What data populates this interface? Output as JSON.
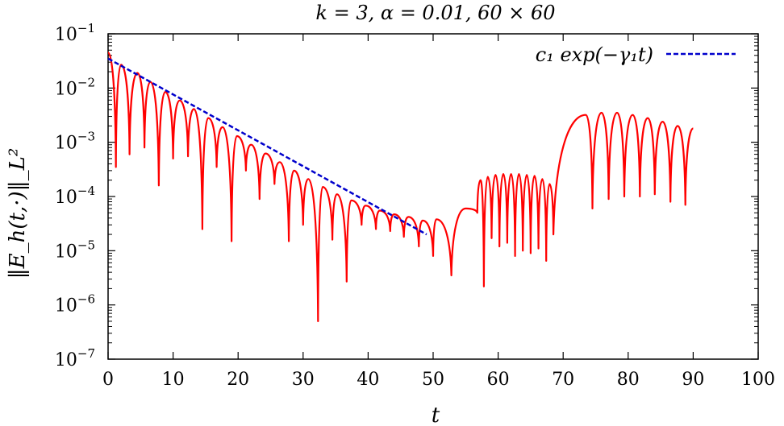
{
  "chart_data": {
    "type": "line",
    "title": "k = 3, α = 0.01, 60 × 60",
    "xlabel": "t",
    "ylabel": "‖E_h(t,·)‖_L²",
    "xlim": [
      0,
      100
    ],
    "ylim": [
      1e-07,
      0.1
    ],
    "yscale": "log",
    "grid": false,
    "legend_position": "top-right",
    "x_ticks": [
      0,
      10,
      20,
      30,
      40,
      50,
      60,
      70,
      80,
      90,
      100
    ],
    "y_ticks": [
      {
        "value": 1e-07,
        "base": "10",
        "exp": "−7"
      },
      {
        "value": 1e-06,
        "base": "10",
        "exp": "−6"
      },
      {
        "value": 1e-05,
        "base": "10",
        "exp": "−5"
      },
      {
        "value": 0.0001,
        "base": "10",
        "exp": "−4"
      },
      {
        "value": 0.001,
        "base": "10",
        "exp": "−3"
      },
      {
        "value": 0.01,
        "base": "10",
        "exp": "−2"
      },
      {
        "value": 0.1,
        "base": "10",
        "exp": "−1"
      }
    ],
    "series": [
      {
        "color": "#ff0000",
        "style": "solid",
        "peaks": [
          [
            0,
            0.045
          ],
          [
            2.0,
            0.027
          ],
          [
            4.5,
            0.019
          ],
          [
            6.5,
            0.013
          ],
          [
            8.8,
            0.0085
          ],
          [
            11.0,
            0.0059
          ],
          [
            13.2,
            0.0041
          ],
          [
            15.4,
            0.0028
          ],
          [
            17.6,
            0.0019
          ],
          [
            19.8,
            0.0013
          ],
          [
            22.0,
            0.0009
          ],
          [
            24.2,
            0.00062
          ],
          [
            26.4,
            0.00043
          ],
          [
            28.6,
            0.0003
          ],
          [
            30.8,
            0.00021
          ],
          [
            33.0,
            0.00015
          ],
          [
            35.2,
            0.00011
          ],
          [
            37.4,
            8.5e-05
          ],
          [
            39.6,
            6.8e-05
          ],
          [
            41.8,
            5.5e-05
          ],
          [
            44.0,
            4.7e-05
          ],
          [
            46.2,
            4.2e-05
          ],
          [
            48.4,
            3.6e-05
          ],
          [
            50.5,
            3.8e-05
          ],
          [
            55.0,
            6e-05
          ],
          [
            57.3,
            0.0002
          ],
          [
            58.4,
            0.00023
          ],
          [
            59.6,
            0.00025
          ],
          [
            60.8,
            0.00026
          ],
          [
            62.0,
            0.00026
          ],
          [
            63.2,
            0.00026
          ],
          [
            64.4,
            0.00025
          ],
          [
            65.6,
            0.00024
          ],
          [
            66.8,
            0.00021
          ],
          [
            67.9,
            0.00017
          ],
          [
            73.5,
            0.0032
          ],
          [
            75.9,
            0.0035
          ],
          [
            78.3,
            0.0035
          ],
          [
            80.7,
            0.0032
          ],
          [
            83.0,
            0.0028
          ],
          [
            85.3,
            0.0024
          ],
          [
            87.6,
            0.002
          ],
          [
            90.0,
            0.0018
          ]
        ],
        "dips": [
          [
            1.2,
            0.00035
          ],
          [
            3.3,
            0.0006
          ],
          [
            5.6,
            0.0008
          ],
          [
            7.8,
            0.00016
          ],
          [
            10.0,
            0.0005
          ],
          [
            12.3,
            0.00055
          ],
          [
            14.5,
            2.5e-05
          ],
          [
            16.7,
            0.00035
          ],
          [
            19.0,
            1.5e-05
          ],
          [
            21.2,
            0.0003
          ],
          [
            23.3,
            9e-05
          ],
          [
            25.6,
            0.00017
          ],
          [
            27.8,
            1.5e-05
          ],
          [
            30.0,
            3e-05
          ],
          [
            32.3,
            5e-07
          ],
          [
            34.5,
            1.6e-05
          ],
          [
            36.7,
            2.7e-06
          ],
          [
            39.0,
            3e-05
          ],
          [
            41.2,
            2.5e-05
          ],
          [
            43.4,
            2.3e-05
          ],
          [
            45.5,
            1.8e-05
          ],
          [
            47.8,
            1.2e-05
          ],
          [
            50.0,
            8e-06
          ],
          [
            52.8,
            3.5e-06
          ],
          [
            56.8,
            5e-05
          ],
          [
            57.8,
            2.2e-06
          ],
          [
            59.0,
            1.7e-05
          ],
          [
            60.2,
            1.2e-05
          ],
          [
            61.4,
            1.4e-05
          ],
          [
            62.6,
            8e-06
          ],
          [
            63.8,
            1e-05
          ],
          [
            65.0,
            9e-06
          ],
          [
            66.2,
            1.1e-05
          ],
          [
            67.4,
            6.5e-06
          ],
          [
            68.5,
            2e-05
          ],
          [
            74.5,
            6e-05
          ],
          [
            77.0,
            9e-05
          ],
          [
            79.4,
            0.0001
          ],
          [
            81.8,
            0.0001
          ],
          [
            84.1,
            0.00011
          ],
          [
            86.5,
            8e-05
          ],
          [
            88.8,
            7e-05
          ]
        ]
      },
      {
        "name": "c₁ exp(−γ₁t)",
        "color": "#0000cc",
        "style": "dashed",
        "x": [
          0,
          49
        ],
        "y": [
          0.035,
          2e-05
        ]
      }
    ]
  }
}
